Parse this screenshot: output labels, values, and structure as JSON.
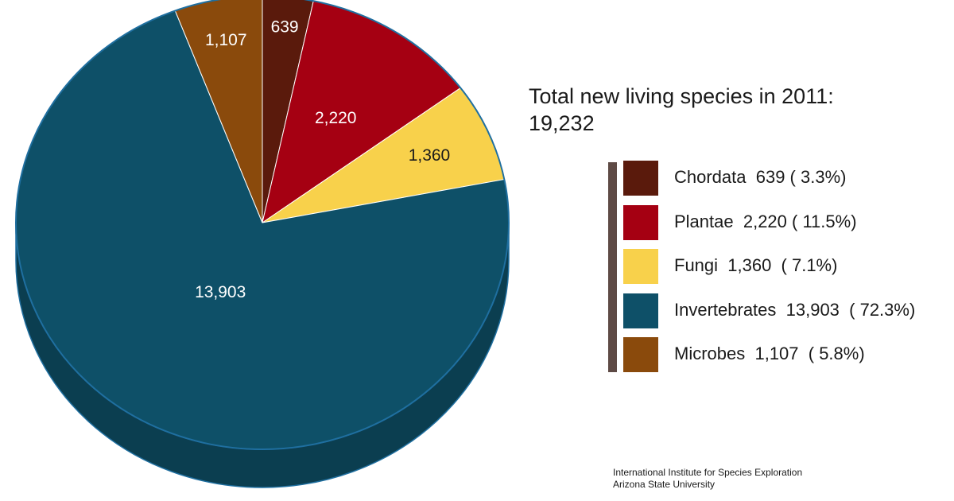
{
  "chart_data": {
    "type": "pie",
    "title": "Total new living species in 2011:",
    "total": "19,232",
    "slices": [
      {
        "name": "Chordata",
        "value": 639,
        "label": "639",
        "percent": "3.3%",
        "legend": "Chordata  639 ( 3.3%)",
        "color": "#5a1a0c",
        "label_color": "#ffffff"
      },
      {
        "name": "Plantae",
        "value": 2220,
        "label": "2,220",
        "percent": "11.5%",
        "legend": "Plantae  2,220 ( 11.5%)",
        "color": "#a50012",
        "label_color": "#ffffff"
      },
      {
        "name": "Fungi",
        "value": 1360,
        "label": "1,360",
        "percent": "7.1%",
        "legend": "Fungi  1,360  ( 7.1%)",
        "color": "#f8d14b",
        "label_color": "#1a1a1a"
      },
      {
        "name": "Invertebrates",
        "value": 13903,
        "label": "13,903",
        "percent": "72.3%",
        "legend": "Invertebrates  13,903  ( 72.3%)",
        "color": "#0e5068",
        "label_color": "#ffffff"
      },
      {
        "name": "Microbes",
        "value": 1107,
        "label": "1,107",
        "percent": "5.8%",
        "legend": "Microbes  1,107  ( 5.8%)",
        "color": "#8a4a0c",
        "label_color": "#ffffff"
      }
    ],
    "legend_placement": "right",
    "side_color": "#0b3e50",
    "edge_color": "#1f6fa0"
  },
  "source": {
    "line1": "International Institute for Species Exploration",
    "line2": "Arizona State University"
  }
}
